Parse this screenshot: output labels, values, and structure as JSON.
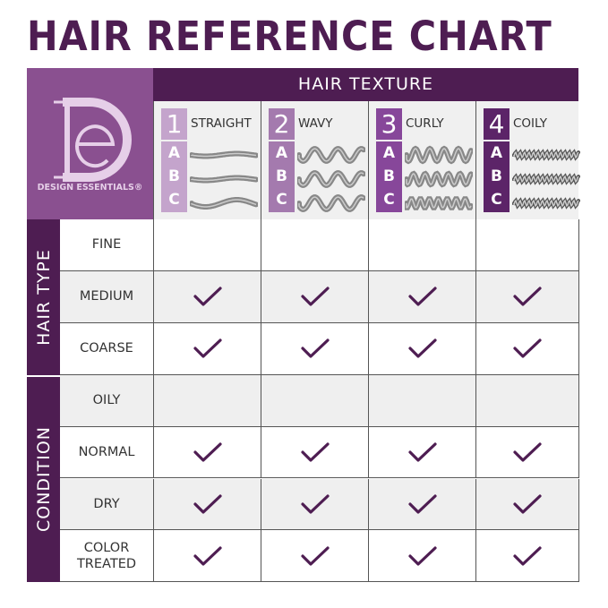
{
  "title": "HAIR REFERENCE CHART",
  "brand": {
    "name": "DESIGN ESSENTIALS®",
    "logo_letters": "DE"
  },
  "header": "HAIR TEXTURE",
  "textures": [
    {
      "num": "1",
      "name": "STRAIGHT",
      "sub": [
        "A",
        "B",
        "C"
      ],
      "color": "#c4a4cc"
    },
    {
      "num": "2",
      "name": "WAVY",
      "sub": [
        "A",
        "B",
        "C"
      ],
      "color": "#a47aae"
    },
    {
      "num": "3",
      "name": "CURLY",
      "sub": [
        "A",
        "B",
        "C"
      ],
      "color": "#87479a"
    },
    {
      "num": "4",
      "name": "COILY",
      "sub": [
        "A",
        "B",
        "C"
      ],
      "color": "#5c2468"
    }
  ],
  "groups": [
    {
      "label": "HAIR TYPE",
      "rows": [
        {
          "label": "FINE",
          "checks": [
            false,
            false,
            false,
            false
          ]
        },
        {
          "label": "MEDIUM",
          "checks": [
            true,
            true,
            true,
            true
          ]
        },
        {
          "label": "COARSE",
          "checks": [
            true,
            true,
            true,
            true
          ]
        }
      ]
    },
    {
      "label": "CONDITION",
      "rows": [
        {
          "label": "OILY",
          "checks": [
            false,
            false,
            false,
            false
          ]
        },
        {
          "label": "NORMAL",
          "checks": [
            true,
            true,
            true,
            true
          ]
        },
        {
          "label": "DRY",
          "checks": [
            true,
            true,
            true,
            true
          ]
        },
        {
          "label": "COLOR TREATED",
          "checks": [
            true,
            true,
            true,
            true
          ]
        }
      ]
    }
  ],
  "colors": {
    "primary": "#4e1d52",
    "logo_bg": "#8a5090",
    "check": "#4e1d52"
  },
  "icons": {
    "check": "checkmark-icon"
  }
}
